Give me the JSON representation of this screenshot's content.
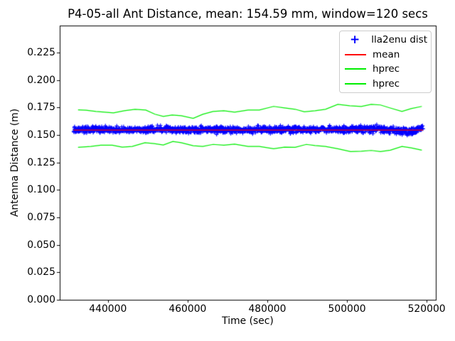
{
  "chart_data": {
    "type": "scatter+line",
    "title": "P4-05-all Ant Distance, mean: 154.59 mm, window=120 secs",
    "xlabel": "Time (sec)",
    "ylabel": "Antenna Distance (m)",
    "xlim": [
      427900,
      522300
    ],
    "ylim": [
      0,
      0.2497
    ],
    "grid": false,
    "axis_color": "#000000",
    "x_ticks": [
      {
        "v": 440000,
        "label": "440000"
      },
      {
        "v": 460000,
        "label": "460000"
      },
      {
        "v": 480000,
        "label": "480000"
      },
      {
        "v": 500000,
        "label": "500000"
      },
      {
        "v": 520000,
        "label": "520000"
      }
    ],
    "y_ticks": [
      {
        "v": 0.0,
        "label": "0.000"
      },
      {
        "v": 0.025,
        "label": "0.025"
      },
      {
        "v": 0.05,
        "label": "0.050"
      },
      {
        "v": 0.075,
        "label": "0.075"
      },
      {
        "v": 0.1,
        "label": "0.100"
      },
      {
        "v": 0.125,
        "label": "0.125"
      },
      {
        "v": 0.15,
        "label": "0.150"
      },
      {
        "v": 0.175,
        "label": "0.175"
      },
      {
        "v": 0.2,
        "label": "0.200"
      },
      {
        "v": 0.225,
        "label": "0.225"
      }
    ],
    "legend": {
      "position": "upper right",
      "border_color": "#cccccc",
      "items": [
        {
          "label": "lla2enu dist",
          "marker": "plus",
          "color": "#0000ff"
        },
        {
          "label": "mean",
          "marker": "line",
          "color": "#ff0000"
        },
        {
          "label": "hprec",
          "marker": "line",
          "color": "#00ee00"
        },
        {
          "label": "hprec",
          "marker": "line",
          "color": "#00ee00"
        }
      ]
    },
    "series": [
      {
        "name": "lla2enu dist",
        "type": "scatter",
        "marker": "+",
        "color": "#0000ff",
        "mean": 0.15459,
        "x_start": 431400,
        "x_end": 519100,
        "n_points": 1500,
        "seed": 42,
        "band_x": [
          431400,
          434000,
          438000,
          442000,
          446000,
          450000,
          454000,
          458000,
          462000,
          466000,
          470000,
          474000,
          478000,
          482000,
          486000,
          490000,
          494000,
          498000,
          502000,
          506000,
          510000,
          513000,
          515500,
          517500,
          519100
        ],
        "band_low": [
          0.1515,
          0.1505,
          0.15,
          0.1505,
          0.151,
          0.15,
          0.1505,
          0.1505,
          0.1505,
          0.15,
          0.1505,
          0.1505,
          0.15,
          0.1495,
          0.15,
          0.1505,
          0.151,
          0.15,
          0.1505,
          0.15,
          0.1505,
          0.15,
          0.148,
          0.1505,
          0.152
        ],
        "band_high": [
          0.158,
          0.159,
          0.16,
          0.1585,
          0.158,
          0.1595,
          0.1605,
          0.1585,
          0.159,
          0.1595,
          0.159,
          0.1595,
          0.16,
          0.159,
          0.1605,
          0.159,
          0.159,
          0.1595,
          0.1605,
          0.161,
          0.1595,
          0.158,
          0.1575,
          0.16,
          0.16
        ]
      },
      {
        "name": "mean",
        "type": "line",
        "color": "#ff0000",
        "x": [
          431400,
          519100
        ],
        "y": [
          0.15459,
          0.15459
        ]
      },
      {
        "name": "hprec",
        "type": "line",
        "color": "#00ee00",
        "x": [
          432500,
          434500,
          437000,
          441400,
          444100,
          446800,
          449500,
          451800,
          453900,
          456100,
          458400,
          461400,
          463800,
          466400,
          469100,
          471800,
          475200,
          478000,
          481600,
          484300,
          487000,
          489300,
          492000,
          494600,
          497700,
          500700,
          503600,
          506100,
          508400,
          510700,
          513800,
          516100,
          518800
        ],
        "y": [
          0.173,
          0.1726,
          0.1715,
          0.1702,
          0.1722,
          0.1735,
          0.1728,
          0.169,
          0.167,
          0.1683,
          0.1676,
          0.1652,
          0.1689,
          0.1715,
          0.1722,
          0.1709,
          0.1728,
          0.1728,
          0.1761,
          0.1748,
          0.1735,
          0.1712,
          0.1722,
          0.1735,
          0.178,
          0.1767,
          0.1761,
          0.178,
          0.1774,
          0.1748,
          0.1715,
          0.1741,
          0.1761
        ]
      },
      {
        "name": "hprec",
        "type": "line",
        "color": "#00ee00",
        "x": [
          432500,
          435700,
          438200,
          441100,
          443600,
          446100,
          449300,
          451600,
          453900,
          456300,
          458400,
          461400,
          463800,
          466400,
          469100,
          471800,
          475200,
          478000,
          481600,
          484300,
          487000,
          489800,
          492000,
          494600,
          497700,
          500900,
          503600,
          506100,
          508400,
          510900,
          513800,
          516100,
          518800
        ],
        "y": [
          0.1388,
          0.1396,
          0.1408,
          0.1408,
          0.139,
          0.1396,
          0.143,
          0.1422,
          0.141,
          0.1442,
          0.143,
          0.1403,
          0.1397,
          0.1415,
          0.1408,
          0.1418,
          0.1396,
          0.1396,
          0.1376,
          0.139,
          0.1388,
          0.1415,
          0.1405,
          0.1396,
          0.1376,
          0.135,
          0.1353,
          0.136,
          0.135,
          0.1363,
          0.1396,
          0.1383,
          0.1363
        ]
      }
    ]
  }
}
